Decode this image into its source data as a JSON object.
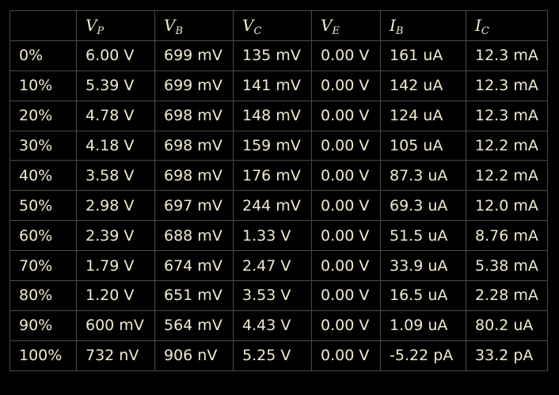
{
  "table": {
    "headers": [
      {
        "main": "",
        "sub": ""
      },
      {
        "main": "V",
        "sub": "P"
      },
      {
        "main": "V",
        "sub": "B"
      },
      {
        "main": "V",
        "sub": "C"
      },
      {
        "main": "V",
        "sub": "E"
      },
      {
        "main": "I",
        "sub": "B"
      },
      {
        "main": "I",
        "sub": "C"
      }
    ],
    "rows": [
      [
        "0%",
        "6.00 V",
        "699 mV",
        "135 mV",
        "0.00 V",
        "161 uA",
        "12.3 mA"
      ],
      [
        "10%",
        "5.39 V",
        "699 mV",
        "141 mV",
        "0.00 V",
        "142 uA",
        "12.3 mA"
      ],
      [
        "20%",
        "4.78 V",
        "698 mV",
        "148 mV",
        "0.00 V",
        "124 uA",
        "12.3 mA"
      ],
      [
        "30%",
        "4.18 V",
        "698 mV",
        "159 mV",
        "0.00 V",
        "105 uA",
        "12.2 mA"
      ],
      [
        "40%",
        "3.58 V",
        "698 mV",
        "176 mV",
        "0.00 V",
        "87.3 uA",
        "12.2 mA"
      ],
      [
        "50%",
        "2.98 V",
        "697 mV",
        "244 mV",
        "0.00 V",
        "69.3 uA",
        "12.0 mA"
      ],
      [
        "60%",
        "2.39 V",
        "688 mV",
        "1.33 V",
        "0.00 V",
        "51.5 uA",
        "8.76 mA"
      ],
      [
        "70%",
        "1.79 V",
        "674 mV",
        "2.47 V",
        "0.00 V",
        "33.9 uA",
        "5.38 mA"
      ],
      [
        "80%",
        "1.20 V",
        "651 mV",
        "3.53 V",
        "0.00 V",
        "16.5 uA",
        "2.28 mA"
      ],
      [
        "90%",
        "600 mV",
        "564 mV",
        "4.43 V",
        "0.00 V",
        "1.09 uA",
        "80.2 uA"
      ],
      [
        "100%",
        "732 nV",
        "906 nV",
        "5.25 V",
        "0.00 V",
        "-5.22 pA",
        "33.2 pA"
      ]
    ]
  },
  "colors": {
    "background": "#000000",
    "text": "#f1ead0",
    "grid": "#4a4a4a"
  }
}
